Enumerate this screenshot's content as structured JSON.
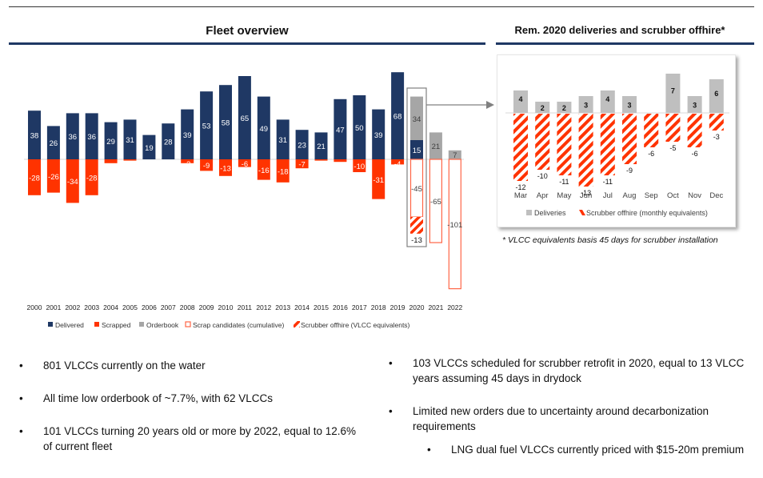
{
  "sections": {
    "fleet_title": "Fleet overview",
    "rem_title": "Rem. 2020 deliveries and scrubber offhire*",
    "footnote": "* VLCC equivalents basis 45 days for scrubber installation"
  },
  "colors": {
    "delivered": "#1f3864",
    "scrapped": "#ff3300",
    "orderbook": "#a6a6a6",
    "scrap_candidates_outline": "#ff6647",
    "scrubber_stripe": "#ff3300",
    "deliveries_inset": "#bfbfbf"
  },
  "chart_data": [
    {
      "type": "bar",
      "title": "Fleet overview",
      "categories": [
        "2000",
        "2001",
        "2002",
        "2003",
        "2004",
        "2005",
        "2006",
        "2007",
        "2008",
        "2009",
        "2010",
        "2011",
        "2012",
        "2013",
        "2014",
        "2015",
        "2016",
        "2017",
        "2018",
        "2019",
        "2020",
        "2021",
        "2022"
      ],
      "series": [
        {
          "name": "Delivered",
          "values": [
            38,
            26,
            36,
            36,
            29,
            31,
            19,
            28,
            39,
            53,
            58,
            65,
            49,
            31,
            23,
            21,
            47,
            50,
            39,
            68,
            15,
            null,
            null
          ]
        },
        {
          "name": "Scrapped",
          "values": [
            -28,
            -26,
            -34,
            -28,
            -3,
            -1,
            0,
            0,
            -3,
            -9,
            -13,
            -6,
            -16,
            -18,
            -7,
            -1,
            -2,
            -10,
            -31,
            -4,
            null,
            null,
            null
          ]
        },
        {
          "name": "Orderbook",
          "values": [
            null,
            null,
            null,
            null,
            null,
            null,
            null,
            null,
            null,
            null,
            null,
            null,
            null,
            null,
            null,
            null,
            null,
            null,
            null,
            null,
            34,
            21,
            7
          ]
        },
        {
          "name": "Scrap candidates (cumulative)",
          "values": [
            null,
            null,
            null,
            null,
            null,
            null,
            null,
            null,
            null,
            null,
            null,
            null,
            null,
            null,
            null,
            null,
            null,
            null,
            null,
            null,
            -45,
            -65,
            -101
          ]
        },
        {
          "name": "Scrubber offhire (VLCC equivalents)",
          "values": [
            null,
            null,
            null,
            null,
            null,
            null,
            null,
            null,
            null,
            null,
            null,
            null,
            null,
            null,
            null,
            null,
            null,
            null,
            null,
            null,
            -13,
            null,
            null
          ]
        }
      ],
      "hidden_labels": {
        "scrapped": [
          "2004",
          "2005",
          "2015",
          "2016"
        ]
      },
      "highlight": "2020",
      "legend": [
        "Delivered",
        "Scrapped",
        "Orderbook",
        "Scrap candidates (cumulative)",
        "Scrubber offhire (VLCC equivalents)"
      ],
      "legend_position": "bottom",
      "xlabel": "",
      "ylabel": "",
      "ylim": [
        -110,
        75
      ],
      "grid": false
    },
    {
      "type": "bar",
      "title": "Rem. 2020 deliveries and scrubber offhire*",
      "categories": [
        "Mar",
        "Apr",
        "May",
        "Jun",
        "Jul",
        "Aug",
        "Sep",
        "Oct",
        "Nov",
        "Dec"
      ],
      "series": [
        {
          "name": "Deliveries",
          "values": [
            4,
            2,
            2,
            3,
            4,
            3,
            0,
            7,
            3,
            6
          ]
        },
        {
          "name": "Scrubber offhire (monthly equivalents)",
          "values": [
            -12,
            -10,
            -11,
            -13,
            -11,
            -9,
            -6,
            -5,
            -6,
            -3
          ]
        }
      ],
      "legend": [
        "Deliveries",
        "Scrubber offhire (monthly equivalents)"
      ],
      "legend_position": "bottom",
      "xlabel": "",
      "ylabel": "",
      "ylim": [
        -14,
        8
      ],
      "grid": false
    }
  ],
  "bullets_left": [
    "801 VLCCs currently on the water",
    "All time low orderbook of ~7.7%, with 62 VLCCs",
    "101 VLCCs turning 20 years old or more by 2022, equal to 12.6% of current fleet"
  ],
  "bullets_right": [
    "103 VLCCs scheduled for scrubber retrofit in 2020, equal to 13 VLCC years assuming 45 days in drydock",
    "Limited new orders due to uncertainty around decarbonization requirements",
    "LNG dual fuel VLCCs currently priced with $15-20m premium"
  ],
  "bullet_glyph": "•"
}
